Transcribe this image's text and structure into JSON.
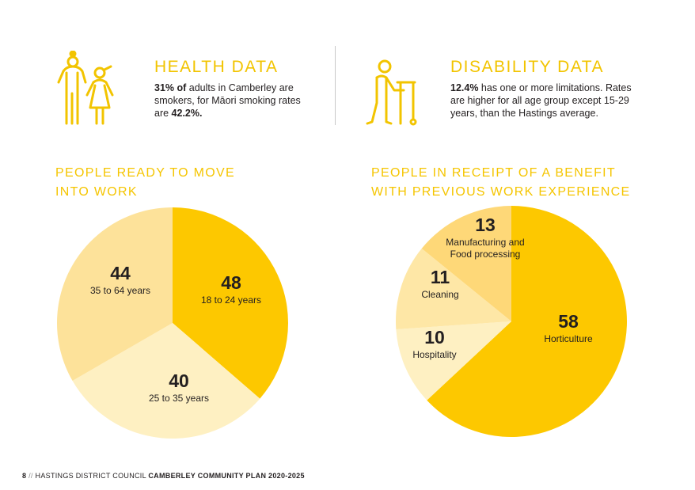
{
  "health": {
    "title": "HEALTH DATA",
    "stat1": "31% of",
    "text1": " adults in Camberley are smokers, for Māori smoking rates are ",
    "stat2": "42.2%.",
    "icon": "family-icon"
  },
  "disability": {
    "title": "DISABILITY DATA",
    "stat1": "12.4%",
    "text1": " has one or more limitations. Rates are higher for all age group except 15-29 years, than the Hastings average.",
    "icon": "walker-icon"
  },
  "colors": {
    "yellow_dark": "#fdc800",
    "yellow_mid": "#fddb7f",
    "yellow_light": "#feeaae",
    "yellow_pale": "#fef3cc",
    "heading": "#f2c400"
  },
  "chart_data": [
    {
      "type": "pie",
      "title_line1": "PEOPLE READY TO MOVE",
      "title_line2": "INTO WORK",
      "slices": [
        {
          "value": 48,
          "label": "48",
          "sublabel": "18 to 24 years",
          "color": "#fdc800"
        },
        {
          "value": 40,
          "label": "40",
          "sublabel": "25 to 35 years",
          "color": "#fef0c2"
        },
        {
          "value": 44,
          "label": "44",
          "sublabel": "35 to 64 years",
          "color": "#fde29a"
        }
      ]
    },
    {
      "type": "pie",
      "title_line1": "PEOPLE IN RECEIPT OF A BENEFIT",
      "title_line2": "WITH PREVIOUS WORK EXPERIENCE",
      "slices": [
        {
          "value": 58,
          "label": "58",
          "sublabel": "Horticulture",
          "color": "#fdc800"
        },
        {
          "value": 10,
          "label": "10",
          "sublabel": "Hospitality",
          "color": "#fef0c2"
        },
        {
          "value": 11,
          "label": "11",
          "sublabel": "Cleaning",
          "color": "#fee7a6"
        },
        {
          "value": 13,
          "label": "13",
          "sublabel": "Manufacturing and",
          "sublabel2": "Food processing",
          "color": "#fed878"
        }
      ]
    }
  ],
  "footer": {
    "page": "8",
    "sep": "//",
    "org": "HASTINGS DISTRICT COUNCIL",
    "plan": "CAMBERLEY COMMUNITY PLAN 2020-2025"
  }
}
